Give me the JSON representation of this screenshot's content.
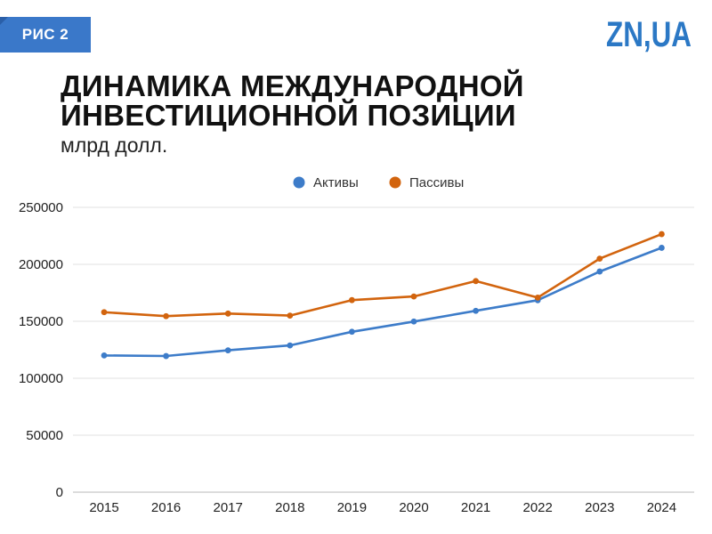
{
  "badge": {
    "label": "РИС 2",
    "color": "#3a78c9"
  },
  "logo": {
    "text": "ZN,UA",
    "color": "#2b78c5"
  },
  "title_lines": [
    "ДИНАМИКА МЕЖДУНАРОДНОЙ",
    "ИНВЕСТИЦИОННОЙ ПОЗИЦИИ"
  ],
  "subtitle": "млрд долл.",
  "chart_data": {
    "type": "line",
    "categories": [
      "2015",
      "2016",
      "2017",
      "2018",
      "2019",
      "2020",
      "2021",
      "2022",
      "2023",
      "2024"
    ],
    "series": [
      {
        "name": "Активы",
        "color": "#3d7cc9",
        "values": [
          120000,
          119500,
          124500,
          128800,
          140800,
          149800,
          159200,
          168500,
          193700,
          214500
        ]
      },
      {
        "name": "Пассивы",
        "color": "#d2640e",
        "values": [
          158000,
          154500,
          156800,
          155000,
          168600,
          171800,
          185300,
          170800,
          205000,
          226500
        ]
      }
    ],
    "yticks": [
      "0",
      "50000",
      "100000",
      "150000",
      "200000",
      "250000"
    ],
    "ylim": [
      0,
      250000
    ],
    "grid": true,
    "legend_position": "top-center"
  }
}
